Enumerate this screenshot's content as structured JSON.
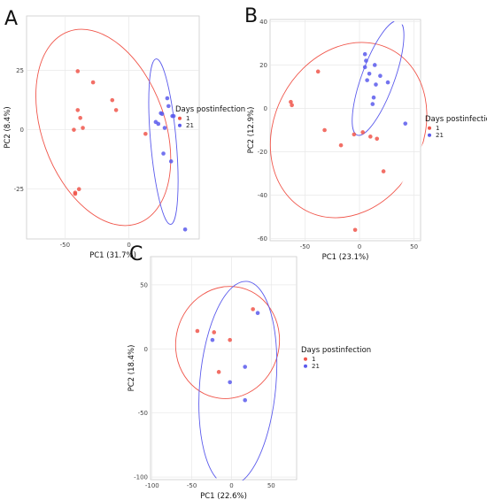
{
  "colors": {
    "day1": "#f0564b",
    "day21": "#5b5bec",
    "grid": "#e8e8e8",
    "frame": "#cccccc"
  },
  "chart_data": [
    {
      "panel": "A",
      "type": "scatter",
      "xlabel": "PC1 (31.7%)",
      "ylabel": "PC2 (8.4%)",
      "xlim": [
        -80,
        55
      ],
      "ylim": [
        -46,
        48
      ],
      "xticks": [
        -50,
        0
      ],
      "yticks": [
        -25,
        0,
        25
      ],
      "legend": {
        "title": "Days postinfection",
        "entries": [
          "1",
          "21"
        ],
        "placement": "right"
      },
      "series": [
        {
          "name": "1",
          "color_key": "day1",
          "points": [
            [
              -40,
              24.7
            ],
            [
              -28,
              20
            ],
            [
              -40,
              8.3
            ],
            [
              -38,
              5
            ],
            [
              -13,
              12.5
            ],
            [
              -10,
              8.3
            ],
            [
              -36,
              0.8
            ],
            [
              -43,
              0
            ],
            [
              13,
              -1.7
            ],
            [
              -39,
              -25
            ],
            [
              -42,
              -26.5
            ],
            [
              -42,
              -27
            ]
          ]
        },
        {
          "name": "21",
          "color_key": "day21",
          "points": [
            [
              30,
              13.3
            ],
            [
              31,
              10
            ],
            [
              25,
              7
            ],
            [
              26,
              6.7
            ],
            [
              34,
              5.8
            ],
            [
              35,
              5.8
            ],
            [
              21,
              3.3
            ],
            [
              23,
              2.5
            ],
            [
              28,
              0.8
            ],
            [
              27,
              -10
            ],
            [
              33,
              -13.3
            ],
            [
              44,
              -42
            ]
          ]
        }
      ],
      "ellipses": [
        {
          "color_key": "day1",
          "cx": -20,
          "cy": 1,
          "rx": 48,
          "ry": 43,
          "angle": 20
        },
        {
          "color_key": "day21",
          "cx": 27,
          "cy": -5,
          "rx": 10,
          "ry": 35,
          "angle": 5
        }
      ]
    },
    {
      "panel": "B",
      "type": "scatter",
      "xlabel": "PC1 (23.1%)",
      "ylabel": "PC2 (12.9%)",
      "xlim": [
        -82,
        56
      ],
      "ylim": [
        -61,
        41
      ],
      "xticks": [
        -50,
        0,
        50
      ],
      "yticks": [
        -60,
        -40,
        -20,
        0,
        20,
        40
      ],
      "legend": {
        "title": "Days postinfection",
        "entries": [
          "1",
          "21"
        ],
        "placement": "right"
      },
      "series": [
        {
          "name": "1",
          "color_key": "day1",
          "points": [
            [
              -38,
              17
            ],
            [
              -63,
              3
            ],
            [
              -62,
              1.5
            ],
            [
              -32,
              -10
            ],
            [
              -5,
              -12
            ],
            [
              3,
              -11
            ],
            [
              -17,
              -17
            ],
            [
              10,
              -13
            ],
            [
              16,
              -14
            ],
            [
              22,
              -29
            ],
            [
              -4,
              -56
            ]
          ]
        },
        {
          "name": "21",
          "color_key": "day21",
          "points": [
            [
              5,
              25
            ],
            [
              6,
              22
            ],
            [
              5,
              19
            ],
            [
              14,
              20
            ],
            [
              9,
              16
            ],
            [
              19,
              15
            ],
            [
              7,
              13
            ],
            [
              15,
              11
            ],
            [
              26,
              12
            ],
            [
              13,
              5
            ],
            [
              12,
              2
            ],
            [
              42,
              -7
            ]
          ]
        }
      ],
      "ellipses": [
        {
          "color_key": "day1",
          "cx": -10,
          "cy": -10,
          "rx": 68,
          "ry": 42,
          "angle": -28
        },
        {
          "color_key": "day21",
          "cx": 17,
          "cy": 14,
          "rx": 15,
          "ry": 28,
          "angle": -20
        }
      ]
    },
    {
      "panel": "C",
      "type": "scatter",
      "xlabel": "PC1 (22.6%)",
      "ylabel": "PC2 (18.4%)",
      "xlim": [
        -102,
        82
      ],
      "ylim": [
        -102,
        72
      ],
      "xticks": [
        -100,
        -50,
        0,
        50
      ],
      "yticks": [
        -100,
        -50,
        0,
        50
      ],
      "legend": {
        "title": "Days postinfection",
        "entries": [
          "1",
          "21"
        ],
        "placement": "right"
      },
      "series": [
        {
          "name": "1",
          "color_key": "day1",
          "points": [
            [
              -43,
              14
            ],
            [
              -22,
              13
            ],
            [
              -2,
              7
            ],
            [
              -16,
              -18
            ],
            [
              27,
              31
            ]
          ]
        },
        {
          "name": "21",
          "color_key": "day21",
          "points": [
            [
              -24,
              7
            ],
            [
              33,
              28
            ],
            [
              17,
              -14
            ],
            [
              -2,
              -26
            ],
            [
              17,
              -40
            ]
          ]
        }
      ],
      "ellipses": [
        {
          "color_key": "day1",
          "cx": -5,
          "cy": 5,
          "rx": 65,
          "ry": 44,
          "angle": -15
        },
        {
          "color_key": "day21",
          "cx": 8,
          "cy": -27,
          "rx": 48,
          "ry": 80,
          "angle": -5
        }
      ]
    }
  ]
}
